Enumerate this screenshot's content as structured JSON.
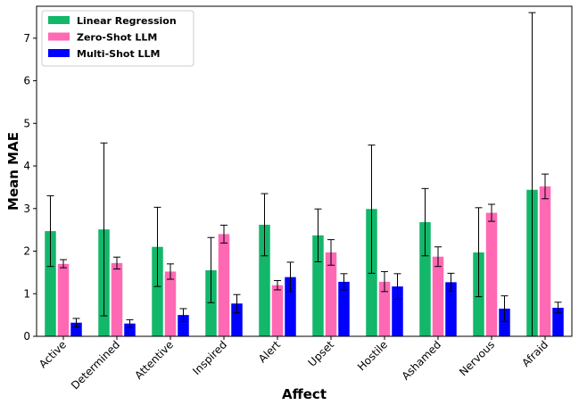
{
  "chart_data": {
    "type": "bar",
    "title": "",
    "xlabel": "Affect",
    "ylabel": "Mean MAE",
    "ylim": [
      0,
      7.75
    ],
    "yticks": [
      0,
      1,
      2,
      3,
      4,
      5,
      6,
      7
    ],
    "grid": false,
    "legend_position": "top-left",
    "categories": [
      "Active",
      "Determined",
      "Attentive",
      "Inspired",
      "Alert",
      "Upset",
      "Hostile",
      "Ashamed",
      "Nervous",
      "Afraid"
    ],
    "series": [
      {
        "name": "Linear Regression",
        "color": "#12b76a",
        "values": [
          2.47,
          2.51,
          2.1,
          1.55,
          2.62,
          2.37,
          2.99,
          2.68,
          1.97,
          3.44
        ],
        "err_low": [
          1.64,
          0.48,
          1.17,
          0.79,
          1.89,
          1.75,
          1.48,
          1.89,
          0.93,
          -0.74
        ],
        "err_high": [
          3.3,
          4.54,
          3.03,
          2.32,
          3.35,
          2.99,
          4.49,
          3.47,
          3.02,
          7.6
        ]
      },
      {
        "name": "Zero-Shot LLM",
        "color": "#ff69b4",
        "values": [
          1.7,
          1.72,
          1.52,
          2.4,
          1.2,
          1.97,
          1.28,
          1.87,
          2.9,
          3.52
        ],
        "err_low": [
          1.61,
          1.58,
          1.34,
          2.19,
          1.09,
          1.67,
          1.05,
          1.64,
          2.7,
          3.23
        ],
        "err_high": [
          1.8,
          1.86,
          1.7,
          2.61,
          1.31,
          2.27,
          1.52,
          2.1,
          3.1,
          3.81
        ]
      },
      {
        "name": "Multi-Shot LLM",
        "color": "#0000ff",
        "values": [
          0.32,
          0.3,
          0.5,
          0.77,
          1.39,
          1.28,
          1.17,
          1.27,
          0.65,
          0.67
        ],
        "err_low": [
          0.22,
          0.21,
          0.35,
          0.55,
          1.05,
          1.09,
          0.87,
          1.06,
          0.35,
          0.55
        ],
        "err_high": [
          0.42,
          0.39,
          0.65,
          0.98,
          1.74,
          1.47,
          1.47,
          1.48,
          0.95,
          0.8
        ]
      }
    ]
  }
}
